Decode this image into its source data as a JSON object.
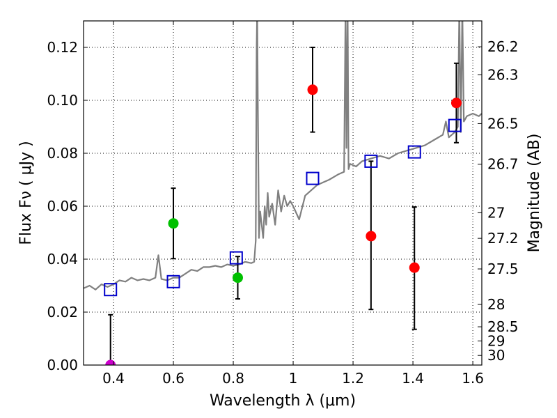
{
  "chart_data": {
    "type": "scatter",
    "xlabel": "Wavelength  λ (μm)",
    "ylabel": "Flux  Fν  ( μJy )",
    "y2label": "Magnitude (AB)",
    "xlim": [
      0.3,
      1.63
    ],
    "ylim": [
      0.0,
      0.13
    ],
    "grid": true,
    "x_ticks": [
      0.4,
      0.6,
      0.8,
      1.0,
      1.2,
      1.4,
      1.6
    ],
    "x_tick_labels": [
      "0.4",
      "0.6",
      "0.8",
      "1",
      "1.2",
      "1.4",
      "1.6"
    ],
    "y_ticks": [
      0.0,
      0.02,
      0.04,
      0.06,
      0.08,
      0.1,
      0.12
    ],
    "y_tick_labels": [
      "0.00",
      "0.02",
      "0.04",
      "0.06",
      "0.08",
      "0.10",
      "0.12"
    ],
    "magnitude_ticks": [
      "26.2",
      "26.3",
      "26.5",
      "26.7",
      "27",
      "27.2",
      "27.5",
      "28",
      "28.5",
      "29",
      "30"
    ],
    "colors": {
      "observed_red": "#ff0000",
      "observed_green": "#00c000",
      "model_squares": "#0000cc",
      "spectrum": "#808080",
      "errorbar": "#000000"
    },
    "series": [
      {
        "name": "observed (red)",
        "marker": "circle",
        "points": [
          {
            "x": 1.065,
            "y": 0.104,
            "yerr_low": 0.088,
            "yerr_high": 0.12
          },
          {
            "x": 1.26,
            "y": 0.0487,
            "yerr_low": 0.021,
            "yerr_high": 0.077
          },
          {
            "x": 1.405,
            "y": 0.0368,
            "yerr_low": 0.0135,
            "yerr_high": 0.0597
          },
          {
            "x": 1.545,
            "y": 0.099,
            "yerr_low": 0.084,
            "yerr_high": 0.114
          }
        ]
      },
      {
        "name": "observed (green)",
        "marker": "circle",
        "points": [
          {
            "x": 0.6,
            "y": 0.0535,
            "yerr_low": 0.0402,
            "yerr_high": 0.0668
          },
          {
            "x": 0.815,
            "y": 0.033,
            "yerr_low": 0.025,
            "yerr_high": 0.041
          }
        ]
      },
      {
        "name": "non-detection (magenta)",
        "marker": "circle",
        "points": [
          {
            "x": 0.39,
            "y": 0.0,
            "yerr_low": 0.0,
            "yerr_high": 0.019
          }
        ]
      },
      {
        "name": "model photometry",
        "marker": "open-square",
        "points": [
          {
            "x": 0.39,
            "y": 0.0285
          },
          {
            "x": 0.6,
            "y": 0.0315
          },
          {
            "x": 0.81,
            "y": 0.0405
          },
          {
            "x": 1.065,
            "y": 0.0705
          },
          {
            "x": 1.26,
            "y": 0.077
          },
          {
            "x": 1.405,
            "y": 0.0805
          },
          {
            "x": 1.54,
            "y": 0.0905
          }
        ]
      }
    ],
    "spectrum": {
      "name": "best-fit template spectrum",
      "x": [
        0.3,
        0.32,
        0.34,
        0.36,
        0.38,
        0.4,
        0.42,
        0.44,
        0.46,
        0.48,
        0.5,
        0.52,
        0.54,
        0.55,
        0.56,
        0.58,
        0.6,
        0.62,
        0.64,
        0.66,
        0.68,
        0.7,
        0.72,
        0.74,
        0.76,
        0.78,
        0.8,
        0.82,
        0.84,
        0.86,
        0.87,
        0.875,
        0.878,
        0.88,
        0.882,
        0.886,
        0.89,
        0.9,
        0.905,
        0.91,
        0.915,
        0.92,
        0.93,
        0.94,
        0.95,
        0.96,
        0.97,
        0.98,
        0.99,
        1.0,
        1.02,
        1.04,
        1.06,
        1.08,
        1.1,
        1.12,
        1.15,
        1.17,
        1.175,
        1.178,
        1.182,
        1.185,
        1.19,
        1.21,
        1.23,
        1.26,
        1.29,
        1.32,
        1.35,
        1.38,
        1.41,
        1.44,
        1.47,
        1.5,
        1.51,
        1.52,
        1.54,
        1.55,
        1.555,
        1.56,
        1.565,
        1.57,
        1.58,
        1.6,
        1.62,
        1.63
      ],
      "y": [
        0.029,
        0.03,
        0.0285,
        0.0305,
        0.0295,
        0.0305,
        0.032,
        0.0315,
        0.033,
        0.032,
        0.0325,
        0.032,
        0.033,
        0.0415,
        0.0325,
        0.032,
        0.033,
        0.033,
        0.0345,
        0.036,
        0.0355,
        0.037,
        0.037,
        0.0375,
        0.037,
        0.038,
        0.0375,
        0.038,
        0.039,
        0.0385,
        0.039,
        0.047,
        0.12,
        0.135,
        0.1,
        0.048,
        0.058,
        0.048,
        0.06,
        0.053,
        0.065,
        0.056,
        0.061,
        0.053,
        0.066,
        0.058,
        0.064,
        0.06,
        0.062,
        0.06,
        0.055,
        0.064,
        0.066,
        0.068,
        0.069,
        0.07,
        0.072,
        0.073,
        0.135,
        0.082,
        0.135,
        0.074,
        0.076,
        0.075,
        0.077,
        0.078,
        0.079,
        0.078,
        0.08,
        0.081,
        0.082,
        0.083,
        0.085,
        0.087,
        0.092,
        0.086,
        0.088,
        0.09,
        0.135,
        0.088,
        0.135,
        0.092,
        0.094,
        0.095,
        0.094,
        0.095
      ]
    }
  }
}
